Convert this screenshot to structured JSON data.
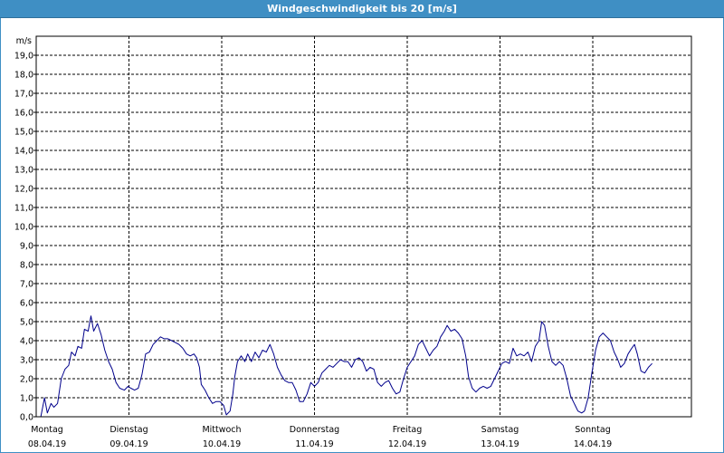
{
  "title": "Windgeschwindigkeit bis 20 [m/s]",
  "chart_data": {
    "type": "line",
    "title": "Windgeschwindigkeit bis 20 [m/s]",
    "ylabel": "m/s",
    "xlabel": "",
    "ylim": [
      0,
      20
    ],
    "xlim": [
      0,
      7
    ],
    "grid": true,
    "yticks": [
      "0,0",
      "1,0",
      "2,0",
      "3,0",
      "4,0",
      "5,0",
      "6,0",
      "7,0",
      "8,0",
      "9,0",
      "10,0",
      "11,0",
      "12,0",
      "13,0",
      "14,0",
      "15,0",
      "16,0",
      "17,0",
      "18,0",
      "19,0"
    ],
    "days": [
      {
        "weekday": "Montag",
        "date": "08.04.19"
      },
      {
        "weekday": "Dienstag",
        "date": "09.04.19"
      },
      {
        "weekday": "Mittwoch",
        "date": "10.04.19"
      },
      {
        "weekday": "Donnerstag",
        "date": "11.04.19"
      },
      {
        "weekday": "Freitag",
        "date": "12.04.19"
      },
      {
        "weekday": "Samstag",
        "date": "13.04.19"
      },
      {
        "weekday": "Sonntag",
        "date": "14.04.19"
      }
    ],
    "series": [
      {
        "color": "#00008b",
        "points": [
          [
            0.0,
            0.0
          ],
          [
            0.05,
            0.0
          ],
          [
            0.09,
            1.0
          ],
          [
            0.12,
            0.2
          ],
          [
            0.16,
            0.7
          ],
          [
            0.19,
            0.5
          ],
          [
            0.23,
            0.7
          ],
          [
            0.27,
            2.0
          ],
          [
            0.31,
            2.5
          ],
          [
            0.35,
            2.7
          ],
          [
            0.38,
            3.4
          ],
          [
            0.42,
            3.2
          ],
          [
            0.45,
            3.7
          ],
          [
            0.49,
            3.6
          ],
          [
            0.52,
            4.6
          ],
          [
            0.56,
            4.5
          ],
          [
            0.59,
            5.3
          ],
          [
            0.62,
            4.5
          ],
          [
            0.66,
            4.9
          ],
          [
            0.7,
            4.3
          ],
          [
            0.74,
            3.5
          ],
          [
            0.78,
            2.9
          ],
          [
            0.82,
            2.5
          ],
          [
            0.86,
            1.8
          ],
          [
            0.9,
            1.5
          ],
          [
            0.95,
            1.4
          ],
          [
            0.99,
            1.6
          ],
          [
            1.02,
            1.5
          ],
          [
            1.06,
            1.4
          ],
          [
            1.1,
            1.5
          ],
          [
            1.14,
            2.2
          ],
          [
            1.18,
            3.3
          ],
          [
            1.22,
            3.4
          ],
          [
            1.26,
            3.8
          ],
          [
            1.3,
            4.0
          ],
          [
            1.34,
            4.2
          ],
          [
            1.38,
            4.1
          ],
          [
            1.42,
            4.1
          ],
          [
            1.46,
            4.0
          ],
          [
            1.5,
            3.9
          ],
          [
            1.54,
            3.8
          ],
          [
            1.58,
            3.6
          ],
          [
            1.62,
            3.3
          ],
          [
            1.66,
            3.2
          ],
          [
            1.7,
            3.3
          ],
          [
            1.73,
            3.1
          ],
          [
            1.76,
            2.6
          ],
          [
            1.78,
            1.7
          ],
          [
            1.82,
            1.4
          ],
          [
            1.86,
            1.0
          ],
          [
            1.9,
            0.7
          ],
          [
            1.94,
            0.8
          ],
          [
            1.98,
            0.8
          ],
          [
            2.02,
            0.6
          ],
          [
            2.05,
            0.1
          ],
          [
            2.09,
            0.3
          ],
          [
            2.12,
            1.2
          ],
          [
            2.14,
            2.1
          ],
          [
            2.17,
            2.9
          ],
          [
            2.21,
            3.2
          ],
          [
            2.25,
            2.9
          ],
          [
            2.28,
            3.3
          ],
          [
            2.32,
            2.9
          ],
          [
            2.36,
            3.4
          ],
          [
            2.4,
            3.1
          ],
          [
            2.44,
            3.5
          ],
          [
            2.48,
            3.4
          ],
          [
            2.52,
            3.8
          ],
          [
            2.56,
            3.3
          ],
          [
            2.6,
            2.6
          ],
          [
            2.64,
            2.2
          ],
          [
            2.68,
            1.9
          ],
          [
            2.72,
            1.8
          ],
          [
            2.76,
            1.8
          ],
          [
            2.8,
            1.4
          ],
          [
            2.84,
            0.8
          ],
          [
            2.88,
            0.8
          ],
          [
            2.92,
            1.2
          ],
          [
            2.96,
            1.8
          ],
          [
            3.0,
            1.6
          ],
          [
            3.04,
            1.8
          ],
          [
            3.08,
            2.3
          ],
          [
            3.12,
            2.5
          ],
          [
            3.16,
            2.7
          ],
          [
            3.2,
            2.6
          ],
          [
            3.24,
            2.8
          ],
          [
            3.28,
            3.0
          ],
          [
            3.32,
            2.9
          ],
          [
            3.36,
            2.9
          ],
          [
            3.4,
            2.6
          ],
          [
            3.44,
            3.0
          ],
          [
            3.48,
            3.1
          ],
          [
            3.52,
            2.9
          ],
          [
            3.56,
            2.4
          ],
          [
            3.6,
            2.6
          ],
          [
            3.64,
            2.5
          ],
          [
            3.68,
            1.8
          ],
          [
            3.72,
            1.6
          ],
          [
            3.76,
            1.8
          ],
          [
            3.8,
            1.9
          ],
          [
            3.84,
            1.5
          ],
          [
            3.88,
            1.2
          ],
          [
            3.92,
            1.3
          ],
          [
            3.96,
            2.0
          ],
          [
            4.0,
            2.6
          ],
          [
            4.04,
            2.9
          ],
          [
            4.08,
            3.2
          ],
          [
            4.12,
            3.8
          ],
          [
            4.16,
            4.0
          ],
          [
            4.2,
            3.6
          ],
          [
            4.24,
            3.2
          ],
          [
            4.28,
            3.5
          ],
          [
            4.32,
            3.7
          ],
          [
            4.36,
            4.2
          ],
          [
            4.4,
            4.5
          ],
          [
            4.43,
            4.8
          ],
          [
            4.47,
            4.5
          ],
          [
            4.51,
            4.6
          ],
          [
            4.55,
            4.4
          ],
          [
            4.59,
            4.1
          ],
          [
            4.63,
            3.2
          ],
          [
            4.66,
            2.1
          ],
          [
            4.7,
            1.5
          ],
          [
            4.74,
            1.3
          ],
          [
            4.78,
            1.5
          ],
          [
            4.82,
            1.6
          ],
          [
            4.86,
            1.5
          ],
          [
            4.9,
            1.6
          ],
          [
            4.94,
            2.0
          ],
          [
            4.98,
            2.4
          ],
          [
            5.02,
            2.8
          ],
          [
            5.06,
            2.9
          ],
          [
            5.1,
            2.8
          ],
          [
            5.14,
            3.6
          ],
          [
            5.18,
            3.2
          ],
          [
            5.22,
            3.3
          ],
          [
            5.26,
            3.2
          ],
          [
            5.3,
            3.4
          ],
          [
            5.34,
            2.9
          ],
          [
            5.38,
            3.7
          ],
          [
            5.42,
            4.0
          ],
          [
            5.45,
            5.0
          ],
          [
            5.48,
            4.8
          ],
          [
            5.52,
            3.7
          ],
          [
            5.56,
            2.9
          ],
          [
            5.6,
            2.7
          ],
          [
            5.64,
            2.9
          ],
          [
            5.68,
            2.7
          ],
          [
            5.72,
            2.0
          ],
          [
            5.76,
            1.1
          ],
          [
            5.8,
            0.7
          ],
          [
            5.84,
            0.3
          ],
          [
            5.88,
            0.2
          ],
          [
            5.91,
            0.3
          ],
          [
            5.95,
            1.0
          ],
          [
            5.99,
            2.3
          ],
          [
            6.03,
            3.5
          ],
          [
            6.07,
            4.2
          ],
          [
            6.11,
            4.4
          ],
          [
            6.15,
            4.2
          ],
          [
            6.19,
            4.0
          ],
          [
            6.23,
            3.4
          ],
          [
            6.27,
            3.0
          ],
          [
            6.3,
            2.6
          ],
          [
            6.34,
            2.8
          ],
          [
            6.38,
            3.3
          ],
          [
            6.42,
            3.6
          ],
          [
            6.45,
            3.8
          ],
          [
            6.48,
            3.3
          ],
          [
            6.52,
            2.4
          ],
          [
            6.56,
            2.3
          ],
          [
            6.6,
            2.6
          ],
          [
            6.64,
            2.8
          ]
        ]
      }
    ]
  }
}
